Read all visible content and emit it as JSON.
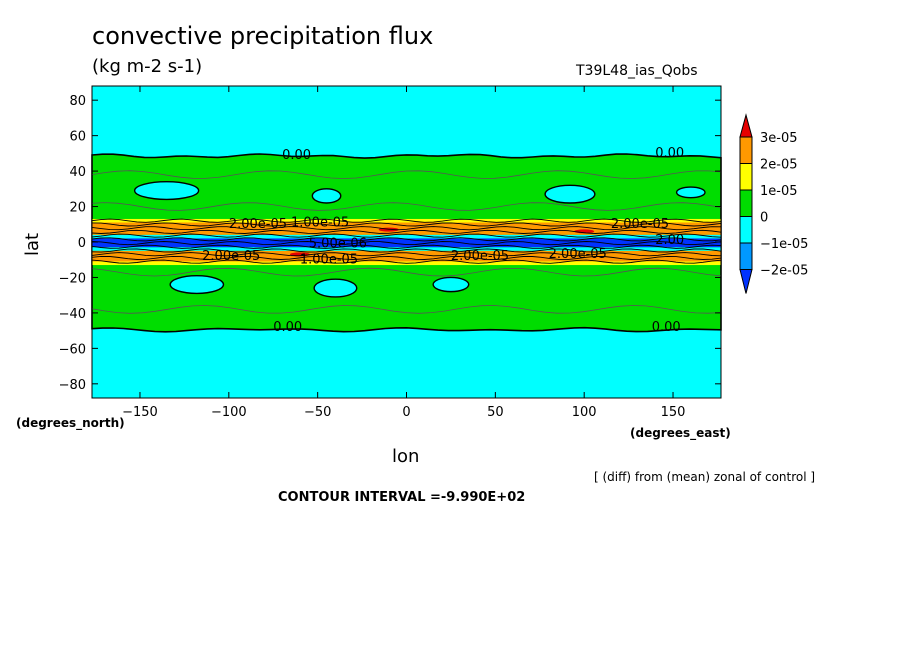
{
  "title": "convective precipitation flux",
  "units": "(kg m-2 s-1)",
  "run_id": "T39L48_ias_Qobs",
  "note": "[ (diff) from (mean) zonal of control ]",
  "contour_interval": "CONTOUR INTERVAL =-9.990E+02",
  "chart_data": {
    "type": "heatmap",
    "xlabel": "lon",
    "ylabel": "lat",
    "x_units": "(degrees_east)",
    "y_units": "(degrees_north)",
    "xlim": [
      -177,
      177
    ],
    "ylim": [
      -88,
      88
    ],
    "xticks": [
      -150,
      -100,
      -50,
      0,
      50,
      100,
      150
    ],
    "yticks": [
      -80,
      -60,
      -40,
      -20,
      0,
      20,
      40,
      60,
      80
    ],
    "colorbar": {
      "labels": [
        "3e-05",
        "2e-05",
        "1e-05",
        "0",
        "−1e-05",
        "−2e-05"
      ],
      "colors": [
        "#e60000",
        "#ff9900",
        "#ffff00",
        "#00dd00",
        "#00ffff",
        "#0099ff",
        "#0033ff"
      ]
    },
    "contour_labels": [
      {
        "text": "0.00",
        "lon": -70,
        "lat": 48
      },
      {
        "text": "0.00",
        "lon": 140,
        "lat": 49
      },
      {
        "text": "0.00",
        "lon": -75,
        "lat": -49
      },
      {
        "text": "0.00",
        "lon": 138,
        "lat": -49
      },
      {
        "text": "1.00e-05",
        "lon": -65,
        "lat": 10
      },
      {
        "text": "2.00e-05",
        "lon": -100,
        "lat": 9
      },
      {
        "text": "2.00e-05",
        "lon": 115,
        "lat": 9
      },
      {
        "text": "2.00e-05",
        "lon": -115,
        "lat": -9
      },
      {
        "text": "1.00e-05",
        "lon": -60,
        "lat": -11
      },
      {
        "text": "2.00e-05",
        "lon": 25,
        "lat": -9
      },
      {
        "text": "2.00e-05",
        "lon": 80,
        "lat": -8
      },
      {
        "text": "5.00e-06",
        "lon": -55,
        "lat": -2
      },
      {
        "text": "2.00",
        "lon": 140,
        "lat": 0
      }
    ],
    "regions": {
      "background": "0 to -1e-05 (cyan) poleward of ~50 degrees",
      "mid_band": "0 to 1e-05 (green) between ~-50 and ~50 lat",
      "tropics": "positive 1e-05 to 3e-05 near +/-5-10 lat, negative -2e-05 near equator"
    }
  }
}
